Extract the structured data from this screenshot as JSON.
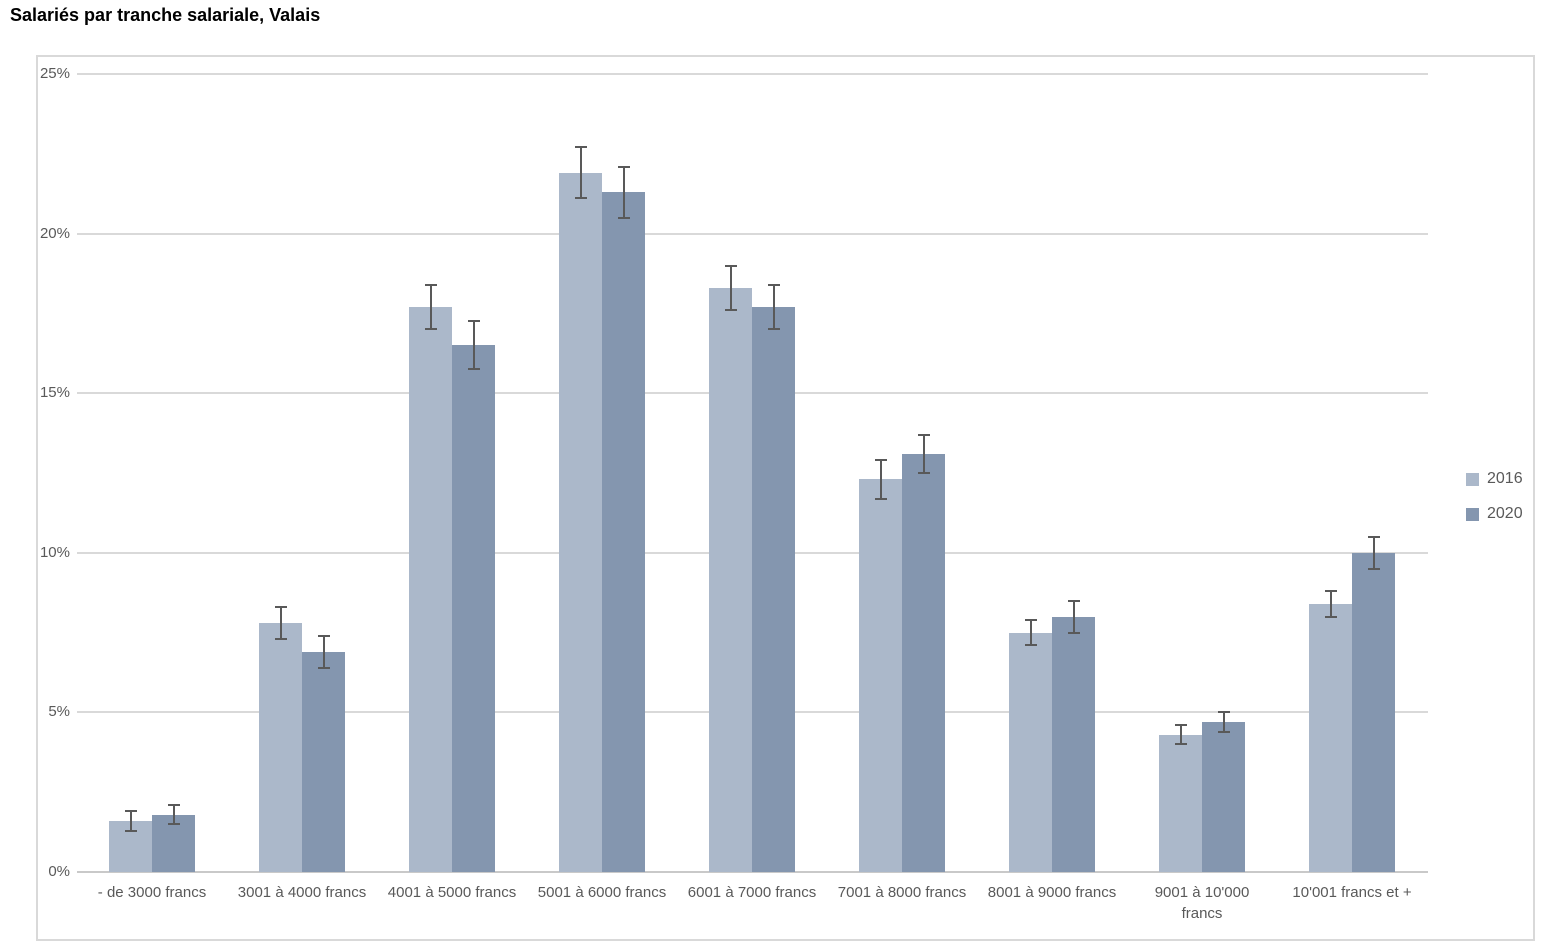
{
  "title": "Salariés par tranche salariale, Valais",
  "legend": {
    "items": [
      {
        "label": "2016",
        "color": "#abb8ca"
      },
      {
        "label": "2020",
        "color": "#8496af"
      }
    ]
  },
  "chart_data": {
    "type": "bar",
    "title": "Salariés par tranche salariale, Valais",
    "xlabel": "",
    "ylabel": "",
    "ylim": [
      0,
      25
    ],
    "grid": true,
    "legend_position": "right",
    "error_bars": true,
    "y_ticks": [
      {
        "label": "0%",
        "value": 0
      },
      {
        "label": "5%",
        "value": 5
      },
      {
        "label": "10%",
        "value": 10
      },
      {
        "label": "15%",
        "value": 15
      },
      {
        "label": "20%",
        "value": 20
      },
      {
        "label": "25%",
        "value": 25
      }
    ],
    "categories": [
      "- de 3000 francs",
      "3001 à 4000 francs",
      "4001 à 5000 francs",
      "5001 à 6000 francs",
      "6001 à 7000 francs",
      "7001 à 8000 francs",
      "8001 à 9000 francs",
      "9001 à 10'000 francs",
      "10'001 francs et +"
    ],
    "series": [
      {
        "name": "2016",
        "color": "#abb8ca",
        "values": [
          1.6,
          7.8,
          17.7,
          21.9,
          18.3,
          12.3,
          7.5,
          4.3,
          8.4
        ],
        "errors": [
          0.3,
          0.5,
          0.7,
          0.8,
          0.7,
          0.6,
          0.4,
          0.3,
          0.4
        ]
      },
      {
        "name": "2020",
        "color": "#8496af",
        "values": [
          1.8,
          6.9,
          16.5,
          21.3,
          17.7,
          13.1,
          8.0,
          4.7,
          10.0
        ],
        "errors": [
          0.3,
          0.5,
          0.75,
          0.8,
          0.7,
          0.6,
          0.5,
          0.3,
          0.5
        ]
      }
    ],
    "error_bar_color": "#595959",
    "gridline_color": "#d9d9d9"
  }
}
